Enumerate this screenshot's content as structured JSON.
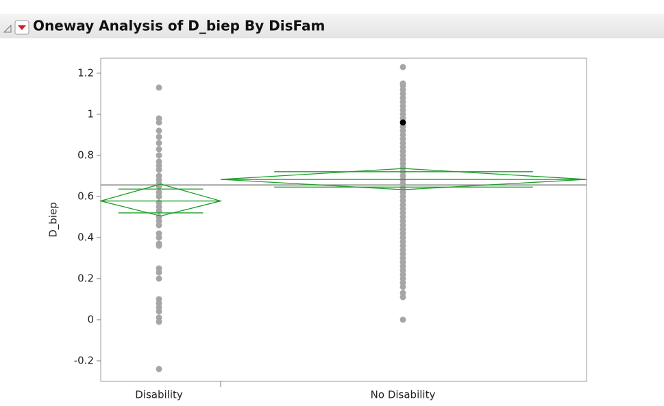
{
  "chart_data": {
    "type": "oneway",
    "title": "Oneway Analysis of D_biep By DisFam",
    "y_label": "D_biep",
    "categories": [
      "Disability",
      "No Disability"
    ],
    "points": [
      [
        1.13,
        0.98,
        0.96,
        0.92,
        0.89,
        0.86,
        0.83,
        0.8,
        0.77,
        0.75,
        0.73,
        0.7,
        0.68,
        0.66,
        0.65,
        0.62,
        0.6,
        0.57,
        0.55,
        0.53,
        0.5,
        0.48,
        0.46,
        0.42,
        0.4,
        0.37,
        0.36,
        0.25,
        0.23,
        0.2,
        0.1,
        0.08,
        0.06,
        0.04,
        0.01,
        -0.01,
        -0.24
      ],
      [
        1.23,
        1.15,
        1.14,
        1.12,
        1.1,
        1.08,
        1.06,
        1.04,
        1.02,
        1.0,
        0.98,
        0.94,
        0.92,
        0.9,
        0.88,
        0.86,
        0.84,
        0.82,
        0.8,
        0.78,
        0.76,
        0.74,
        0.72,
        0.7,
        0.68,
        0.66,
        0.64,
        0.62,
        0.6,
        0.58,
        0.56,
        0.54,
        0.52,
        0.5,
        0.48,
        0.46,
        0.44,
        0.42,
        0.4,
        0.38,
        0.36,
        0.34,
        0.32,
        0.3,
        0.28,
        0.26,
        0.24,
        0.22,
        0.2,
        0.18,
        0.16,
        0.13,
        0.11,
        0.0
      ]
    ],
    "selected_point": {
      "group": 1,
      "value": 0.96,
      "color": "#000000"
    },
    "means": [
      0.578,
      0.683
    ],
    "ci_lower": [
      0.505,
      0.633
    ],
    "ci_upper": [
      0.66,
      0.736
    ],
    "grand_mean": 0.656,
    "point_color": "#a6a6a6",
    "diamond_color": "#1f9e2a",
    "ylim": [
      -0.3,
      1.273
    ],
    "yticks": [
      -0.2,
      0,
      0.2,
      0.4,
      0.6,
      0.8,
      1,
      1.2
    ]
  }
}
